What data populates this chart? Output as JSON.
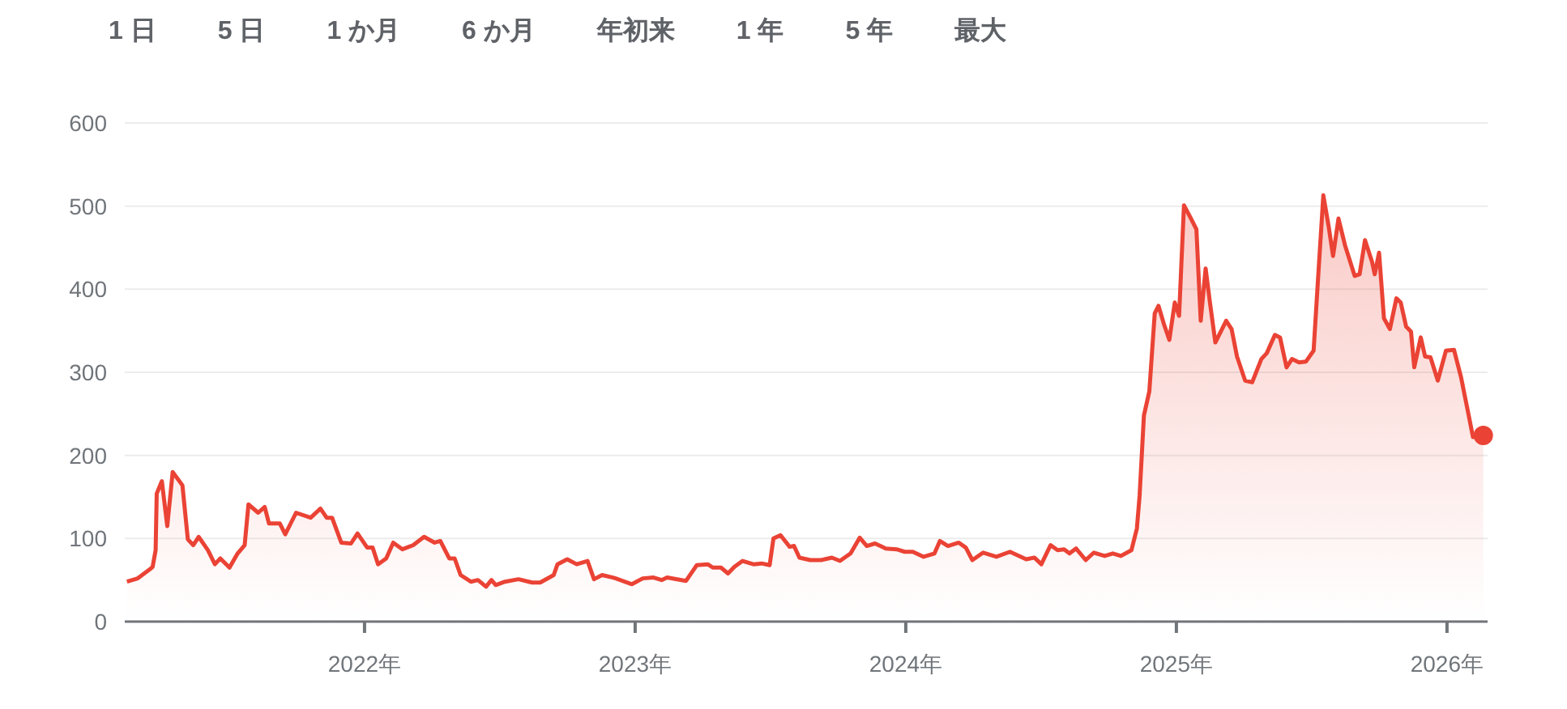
{
  "chart_data": {
    "type": "area",
    "annotations": [
      "1 日",
      "5 日",
      "1 か月",
      "6 か月",
      "年初来",
      "1 年",
      "5 年",
      "最大"
    ],
    "xlim": [
      2021.114,
      2026.15
    ],
    "xticks": [
      {
        "value": 2022,
        "label": "2022年"
      },
      {
        "value": 2023,
        "label": "2023年"
      },
      {
        "value": 2024,
        "label": "2024年"
      },
      {
        "value": 2025,
        "label": "2025年"
      },
      {
        "value": 2026,
        "label": "2026年"
      }
    ],
    "ylim": [
      0,
      600
    ],
    "yticks": [
      0,
      100,
      200,
      300,
      400,
      500,
      600
    ],
    "grid": "y",
    "series": [
      {
        "color": "#ea4335",
        "x": [
          2021.122,
          2021.162,
          2021.211,
          2021.217,
          2021.228,
          2021.232,
          2021.251,
          2021.271,
          2021.291,
          2021.327,
          2021.347,
          2021.367,
          2021.387,
          2021.421,
          2021.447,
          2021.467,
          2021.501,
          2021.531,
          2021.557,
          2021.571,
          2021.607,
          2021.631,
          2021.647,
          2021.687,
          2021.707,
          2021.747,
          2021.801,
          2021.837,
          2021.86,
          2021.88,
          2021.914,
          2021.95,
          2021.974,
          2022.01,
          2022.03,
          2022.05,
          2022.08,
          2022.106,
          2022.14,
          2022.18,
          2022.22,
          2022.259,
          2022.28,
          2022.313,
          2022.333,
          2022.355,
          2022.393,
          2022.419,
          2022.449,
          2022.469,
          2022.485,
          2022.519,
          2022.569,
          2022.619,
          2022.649,
          2022.699,
          2022.713,
          2022.749,
          2022.784,
          2022.824,
          2022.848,
          2022.878,
          2022.918,
          2022.928,
          2022.988,
          2023.028,
          2023.068,
          2023.098,
          2023.118,
          2023.188,
          2023.228,
          2023.268,
          2023.287,
          2023.317,
          2023.343,
          2023.367,
          2023.397,
          2023.437,
          2023.467,
          2023.497,
          2023.511,
          2023.537,
          2023.571,
          2023.587,
          2023.607,
          2023.647,
          2023.687,
          2023.727,
          2023.757,
          2023.796,
          2023.83,
          2023.856,
          2023.886,
          2023.906,
          2023.926,
          2023.966,
          2023.996,
          2024.026,
          2024.066,
          2024.106,
          2024.126,
          2024.156,
          2024.196,
          2024.222,
          2024.246,
          2024.286,
          2024.335,
          2024.385,
          2024.445,
          2024.475,
          2024.501,
          2024.535,
          2024.561,
          2024.585,
          2024.605,
          2024.629,
          2024.665,
          2024.695,
          2024.735,
          2024.765,
          2024.795,
          2024.834,
          2024.854,
          2024.864,
          2024.88,
          2024.9,
          2024.92,
          2024.934,
          2024.954,
          2024.974,
          2024.994,
          2025.01,
          2025.028,
          2025.054,
          2025.074,
          2025.09,
          2025.108,
          2025.124,
          2025.144,
          2025.184,
          2025.204,
          2025.224,
          2025.254,
          2025.28,
          2025.314,
          2025.334,
          2025.364,
          2025.383,
          2025.407,
          2025.427,
          2025.453,
          2025.479,
          2025.507,
          2025.523,
          2025.543,
          2025.563,
          2025.579,
          2025.599,
          2025.623,
          2025.659,
          2025.677,
          2025.697,
          2025.723,
          2025.733,
          2025.749,
          2025.767,
          2025.789,
          2025.813,
          2025.829,
          2025.849,
          2025.867,
          2025.879,
          2025.903,
          2025.919,
          2025.939,
          2025.966,
          2025.996,
          2026.026,
          2026.052,
          2026.076,
          2026.096,
          2026.134
        ],
        "values": [
          48,
          52,
          64,
          66,
          86,
          154,
          169,
          115,
          180,
          164,
          99,
          92,
          102,
          86,
          69,
          76,
          65,
          82,
          92,
          141,
          131,
          138,
          118,
          118,
          105,
          131,
          125,
          136,
          125,
          125,
          95,
          94,
          106,
          89,
          89,
          69,
          76,
          95,
          87,
          92,
          102,
          95,
          97,
          76,
          76,
          56,
          48,
          50,
          42,
          50,
          44,
          48,
          51,
          47,
          47,
          56,
          69,
          75,
          69,
          73,
          51,
          56,
          53,
          52,
          45,
          52,
          53,
          50,
          53,
          49,
          68,
          69,
          65,
          65,
          58,
          66,
          73,
          69,
          70,
          68,
          100,
          104,
          90,
          91,
          77,
          74,
          74,
          77,
          73,
          82,
          101,
          91,
          94,
          91,
          88,
          87,
          84,
          84,
          78,
          82,
          97,
          91,
          95,
          89,
          74,
          83,
          78,
          84,
          75,
          77,
          69,
          92,
          86,
          87,
          82,
          88,
          74,
          83,
          79,
          82,
          79,
          86,
          112,
          151,
          248,
          277,
          371,
          380,
          358,
          339,
          384,
          368,
          501,
          485,
          472,
          362,
          425,
          384,
          336,
          362,
          352,
          319,
          290,
          288,
          316,
          323,
          345,
          342,
          306,
          316,
          312,
          313,
          326,
          410,
          513,
          475,
          440,
          485,
          453,
          416,
          418,
          459,
          433,
          418,
          444,
          365,
          352,
          389,
          384,
          355,
          349,
          306,
          342,
          319,
          318,
          290,
          326,
          327,
          294,
          255,
          222,
          224
        ]
      }
    ]
  }
}
